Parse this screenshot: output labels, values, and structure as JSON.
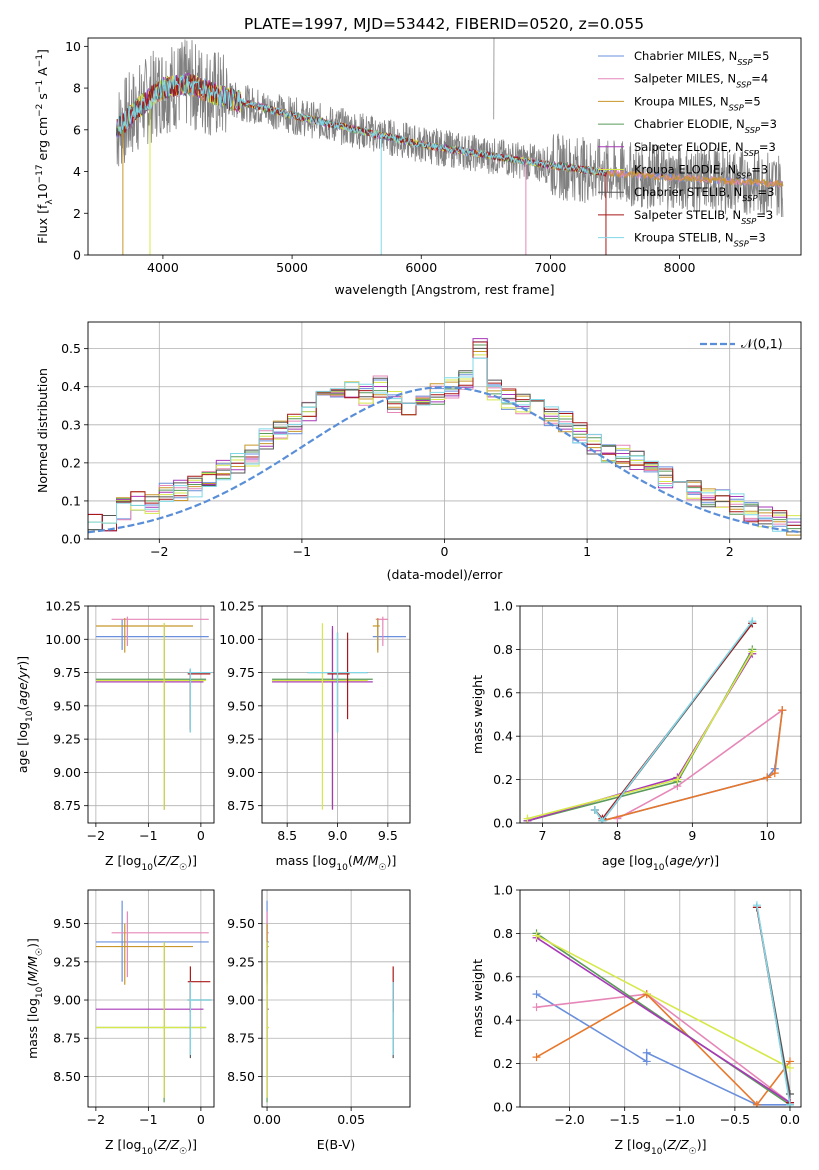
{
  "title": "PLATE=1997, MJD=53442, FIBERID=0520, z=0.055",
  "colors": {
    "Chabrier MILES": "#6a8fdc",
    "Salpeter MILES": "#e687b8",
    "Kroupa MILES": "#c8962a",
    "Chabrier ELODIE": "#5a9a5a",
    "Salpeter ELODIE": "#a838b8",
    "Kroupa ELODIE": "#d6e84a",
    "Chabrier STELIB": "#555555",
    "Salpeter STELIB": "#a81818",
    "Kroupa STELIB": "#7fd8e8",
    "data": "#808080",
    "model_orange": "#e8772a",
    "gauss": "#5a8fd8"
  },
  "chart_data": [
    {
      "id": "spectrum",
      "type": "line",
      "xlabel": "wavelength [Angstrom, rest frame]",
      "ylabel": "Flux [f_λ10^-17 erg cm^-2 s^-1 A^-1]",
      "xlim": [
        3420,
        8940
      ],
      "ylim": [
        0,
        10.4
      ],
      "xticks": [
        4000,
        5000,
        6000,
        7000,
        8000
      ],
      "yticks": [
        0,
        2,
        4,
        6,
        8,
        10
      ],
      "legend": [
        "Chabrier MILES, N_SSP=5",
        "Salpeter MILES, N_SSP=4",
        "Kroupa MILES, N_SSP=5",
        "Chabrier ELODIE, N_SSP=3",
        "Salpeter ELODIE, N_SSP=3",
        "Kroupa ELODIE, N_SSP=3",
        "Chabrier STELIB, N_SSP=3",
        "Salpeter STELIB, N_SSP=3",
        "Kroupa STELIB, N_SSP=3"
      ],
      "legend_position": "upper right",
      "model_trend": {
        "x": [
          3640,
          3800,
          4000,
          4200,
          4500,
          5000,
          5500,
          6000,
          6500,
          7000,
          7500,
          8000,
          8500,
          8800
        ],
        "y": [
          6.0,
          7.0,
          8.0,
          8.2,
          7.5,
          6.7,
          6.0,
          5.3,
          4.8,
          4.3,
          3.9,
          3.7,
          3.5,
          3.4
        ]
      }
    },
    {
      "id": "residuals",
      "type": "histogram",
      "xlabel": "(data-model)/error",
      "ylabel": "Normed distribution",
      "xlim": [
        -2.5,
        2.5
      ],
      "ylim": [
        0,
        0.57
      ],
      "xticks": [
        -2,
        -1,
        0,
        1,
        2
      ],
      "yticks": [
        0.0,
        0.1,
        0.2,
        0.3,
        0.4,
        0.5
      ],
      "grid": true,
      "legend": "𝒩(0,1)",
      "legend_position": "upper right",
      "bin_width": 0.1,
      "base_hist": [
        0.04,
        0.04,
        0.04,
        0.04,
        0.05,
        0.08,
        0.1,
        0.09,
        0.12,
        0.13,
        0.14,
        0.16,
        0.18,
        0.2,
        0.22,
        0.26,
        0.28,
        0.3,
        0.33,
        0.36,
        0.38,
        0.39,
        0.38,
        0.4,
        0.36,
        0.34,
        0.36,
        0.38,
        0.4,
        0.42,
        0.5,
        0.39,
        0.37,
        0.35,
        0.36,
        0.32,
        0.31,
        0.28,
        0.25,
        0.23,
        0.22,
        0.21,
        0.18,
        0.16,
        0.15,
        0.13,
        0.11,
        0.1,
        0.09,
        0.07,
        0.06,
        0.05,
        0.04,
        0.04,
        0.04,
        0.03
      ]
    },
    {
      "id": "age_vs_Z",
      "type": "scatter",
      "xlabel": "Z [log10(Z/Z☉)]",
      "ylabel": "age  [log10(age/yr)]",
      "xlim": [
        -2.15,
        0.25
      ],
      "ylim": [
        8.62,
        10.25
      ],
      "xticks": [
        -2,
        -1,
        0
      ],
      "yticks": [
        8.75,
        9.0,
        9.25,
        9.5,
        9.75,
        10.0,
        10.25
      ],
      "grid": true
    },
    {
      "id": "age_vs_mass",
      "type": "scatter",
      "xlabel": "mass [log10(M/M☉)]",
      "ylabel": "",
      "xlim": [
        8.25,
        9.72
      ],
      "ylim": [
        8.62,
        10.25
      ],
      "xticks": [
        8.5,
        9.0,
        9.5
      ],
      "yticks": [
        8.75,
        9.0,
        9.25,
        9.5,
        9.75,
        10.0,
        10.25
      ],
      "grid": true
    },
    {
      "id": "weight_vs_age",
      "type": "line",
      "xlabel": "age  [log10(age/yr)]",
      "ylabel": "mass weight",
      "xlim": [
        6.7,
        10.45
      ],
      "ylim": [
        0,
        1.0
      ],
      "xticks": [
        7,
        8,
        9,
        10
      ],
      "yticks": [
        0.0,
        0.2,
        0.4,
        0.6,
        0.8,
        1.0
      ],
      "grid": true,
      "series": [
        {
          "name": "Chabrier MILES",
          "x": [
            7.8,
            10.0,
            10.1,
            10.2
          ],
          "y": [
            0.01,
            0.21,
            0.25,
            0.52
          ]
        },
        {
          "name": "Salpeter MILES",
          "x": [
            8.0,
            8.8,
            10.2
          ],
          "y": [
            0.02,
            0.17,
            0.52
          ]
        },
        {
          "name": "Kroupa MILES",
          "x": [
            7.8,
            10.0,
            10.1,
            10.2
          ],
          "y": [
            0.01,
            0.21,
            0.23,
            0.52
          ]
        },
        {
          "name": "Chabrier ELODIE",
          "x": [
            6.8,
            8.8,
            9.8
          ],
          "y": [
            0.01,
            0.19,
            0.8
          ]
        },
        {
          "name": "Salpeter ELODIE",
          "x": [
            6.8,
            8.8,
            9.8
          ],
          "y": [
            0.01,
            0.21,
            0.78
          ]
        },
        {
          "name": "Kroupa ELODIE",
          "x": [
            6.8,
            8.8,
            9.8
          ],
          "y": [
            0.02,
            0.2,
            0.79
          ]
        },
        {
          "name": "Chabrier STELIB",
          "x": [
            7.7,
            7.8,
            9.8
          ],
          "y": [
            0.06,
            0.01,
            0.92
          ]
        },
        {
          "name": "Salpeter STELIB",
          "x": [
            7.7,
            7.8,
            9.8
          ],
          "y": [
            0.06,
            0.02,
            0.92
          ]
        },
        {
          "name": "Kroupa STELIB",
          "x": [
            7.7,
            7.8,
            9.8
          ],
          "y": [
            0.06,
            0.01,
            0.93
          ]
        }
      ]
    },
    {
      "id": "mass_vs_Z",
      "type": "scatter",
      "xlabel": "Z [log10(Z/Z☉)]",
      "ylabel": "mass [log10(M/M☉)]",
      "xlim": [
        -2.15,
        0.25
      ],
      "ylim": [
        8.3,
        9.72
      ],
      "xticks": [
        -2,
        -1,
        0
      ],
      "yticks": [
        8.5,
        8.75,
        9.0,
        9.25,
        9.5
      ],
      "grid": true
    },
    {
      "id": "mass_vs_ebv",
      "type": "scatter",
      "xlabel": "E(B-V)",
      "ylabel": "",
      "xlim": [
        -0.003,
        0.085
      ],
      "ylim": [
        8.3,
        9.72
      ],
      "xticks": [
        0.0,
        0.05
      ],
      "yticks": [
        8.5,
        8.75,
        9.0,
        9.25,
        9.5
      ],
      "grid": true
    },
    {
      "id": "weight_vs_Z",
      "type": "line",
      "xlabel": "Z [log10(Z/Z☉)]",
      "ylabel": "mass weight",
      "xlim": [
        -2.45,
        0.1
      ],
      "ylim": [
        0,
        1.0
      ],
      "xticks": [
        -2.0,
        -1.5,
        -1.0,
        -0.5,
        0.0
      ],
      "yticks": [
        0.0,
        0.2,
        0.4,
        0.6,
        0.8,
        1.0
      ],
      "grid": true,
      "series": [
        {
          "name": "Chabrier MILES",
          "x": [
            -2.3,
            -1.3,
            -1.3,
            -0.3,
            0.0
          ],
          "y": [
            0.52,
            0.21,
            0.25,
            0.01,
            0.01
          ]
        },
        {
          "name": "Salpeter MILES",
          "x": [
            -2.3,
            -1.3,
            0.0
          ],
          "y": [
            0.46,
            0.52,
            0.02
          ]
        },
        {
          "name": "Kroupa MILES",
          "x": [
            -2.3,
            -1.3,
            -0.3,
            0.0
          ],
          "y": [
            0.23,
            0.52,
            0.01,
            0.21
          ]
        },
        {
          "name": "Chabrier ELODIE",
          "x": [
            -2.3,
            0.0
          ],
          "y": [
            0.8,
            0.01
          ]
        },
        {
          "name": "Salpeter ELODIE",
          "x": [
            -2.3,
            0.0
          ],
          "y": [
            0.78,
            0.02
          ]
        },
        {
          "name": "Kroupa ELODIE",
          "x": [
            -2.3,
            0.0
          ],
          "y": [
            0.79,
            0.18
          ]
        },
        {
          "name": "Chabrier STELIB",
          "x": [
            -0.3,
            0.0
          ],
          "y": [
            0.92,
            0.06
          ]
        },
        {
          "name": "Salpeter STELIB",
          "x": [
            -0.3,
            0.0
          ],
          "y": [
            0.92,
            0.02
          ]
        },
        {
          "name": "Kroupa STELIB",
          "x": [
            -0.3,
            0.0
          ],
          "y": [
            0.93,
            0.01
          ]
        }
      ]
    }
  ],
  "error_crosses": {
    "age_vs_Z": [
      {
        "c": "Chabrier MILES",
        "x": -1.5,
        "y": 10.02,
        "xl": -2.0,
        "xr": 0.15,
        "yl": 9.92,
        "yh": 10.15
      },
      {
        "c": "Salpeter MILES",
        "x": -1.4,
        "y": 10.15,
        "xl": -1.7,
        "xr": 0.15,
        "yl": 9.95,
        "yh": 10.17
      },
      {
        "c": "Kroupa MILES",
        "x": -1.45,
        "y": 10.1,
        "xl": -2.0,
        "xr": -0.15,
        "yl": 9.9,
        "yh": 10.16
      },
      {
        "c": "Chabrier ELODIE",
        "x": -0.7,
        "y": 9.7,
        "xl": -2.0,
        "xr": 0.1,
        "yl": 8.72,
        "yh": 10.12
      },
      {
        "c": "Salpeter ELODIE",
        "x": -0.7,
        "y": 9.68,
        "xl": -2.0,
        "xr": 0.05,
        "yl": 8.72,
        "yh": 10.1
      },
      {
        "c": "Kroupa ELODIE",
        "x": -0.7,
        "y": 9.69,
        "xl": -2.0,
        "xr": 0.1,
        "yl": 8.72,
        "yh": 10.12
      },
      {
        "c": "Chabrier STELIB",
        "x": -0.2,
        "y": 9.75,
        "xl": -0.25,
        "xr": 0.2,
        "yl": 9.3,
        "yh": 9.78
      },
      {
        "c": "Salpeter STELIB",
        "x": -0.2,
        "y": 9.74,
        "xl": -0.25,
        "xr": 0.18,
        "yl": 9.32,
        "yh": 9.77
      },
      {
        "c": "Kroupa STELIB",
        "x": -0.2,
        "y": 9.75,
        "xl": -0.25,
        "xr": 0.2,
        "yl": 9.3,
        "yh": 9.78
      }
    ],
    "age_vs_mass": [
      {
        "c": "Chabrier MILES",
        "x": 9.4,
        "y": 10.02,
        "xl": 9.35,
        "xr": 9.68,
        "yl": 9.92,
        "yh": 10.15
      },
      {
        "c": "Salpeter MILES",
        "x": 9.45,
        "y": 10.15,
        "xl": 9.38,
        "xr": 9.5,
        "yl": 9.95,
        "yh": 10.17
      },
      {
        "c": "Kroupa MILES",
        "x": 9.4,
        "y": 10.1,
        "xl": 9.35,
        "xr": 9.42,
        "yl": 9.9,
        "yh": 10.16
      },
      {
        "c": "Chabrier ELODIE",
        "x": 8.95,
        "y": 9.7,
        "xl": 8.35,
        "xr": 9.35,
        "yl": 8.72,
        "yh": 10.08
      },
      {
        "c": "Salpeter ELODIE",
        "x": 8.95,
        "y": 9.68,
        "xl": 8.35,
        "xr": 9.35,
        "yl": 8.72,
        "yh": 10.1
      },
      {
        "c": "Kroupa ELODIE",
        "x": 8.85,
        "y": 9.69,
        "xl": 8.35,
        "xr": 9.3,
        "yl": 8.72,
        "yh": 10.12
      },
      {
        "c": "Chabrier STELIB",
        "x": 9.0,
        "y": 9.75,
        "xl": 8.7,
        "xr": 9.3,
        "yl": 9.3,
        "yh": 10.05
      },
      {
        "c": "Salpeter STELIB",
        "x": 9.1,
        "y": 9.74,
        "xl": 8.9,
        "xr": 9.12,
        "yl": 9.4,
        "yh": 10.05
      },
      {
        "c": "Kroupa STELIB",
        "x": 9.0,
        "y": 9.75,
        "xl": 8.7,
        "xr": 9.3,
        "yl": 9.3,
        "yh": 10.05
      }
    ],
    "mass_vs_Z": [
      {
        "c": "Chabrier MILES",
        "x": -1.5,
        "y": 9.38,
        "xl": -2.0,
        "xr": 0.15,
        "yl": 9.12,
        "yh": 9.65
      },
      {
        "c": "Salpeter MILES",
        "x": -1.4,
        "y": 9.44,
        "xl": -1.7,
        "xr": 0.15,
        "yl": 9.15,
        "yh": 9.58
      },
      {
        "c": "Kroupa MILES",
        "x": -1.45,
        "y": 9.35,
        "xl": -2.0,
        "xr": -0.15,
        "yl": 9.1,
        "yh": 9.5
      },
      {
        "c": "Chabrier ELODIE",
        "x": -0.7,
        "y": 8.82,
        "xl": -2.0,
        "xr": 0.1,
        "yl": 8.33,
        "yh": 9.38
      },
      {
        "c": "Salpeter ELODIE",
        "x": -0.7,
        "y": 8.94,
        "xl": -2.0,
        "xr": 0.05,
        "yl": 8.36,
        "yh": 9.38
      },
      {
        "c": "Kroupa ELODIE",
        "x": -0.7,
        "y": 8.82,
        "xl": -2.0,
        "xr": 0.1,
        "yl": 8.36,
        "yh": 9.38
      },
      {
        "c": "Chabrier STELIB",
        "x": -0.2,
        "y": 9.0,
        "xl": -0.25,
        "xr": 0.2,
        "yl": 8.62,
        "yh": 9.12
      },
      {
        "c": "Salpeter STELIB",
        "x": -0.2,
        "y": 9.12,
        "xl": -0.25,
        "xr": 0.18,
        "yl": 8.92,
        "yh": 9.22
      },
      {
        "c": "Kroupa STELIB",
        "x": -0.2,
        "y": 9.0,
        "xl": -0.25,
        "xr": 0.2,
        "yl": 8.64,
        "yh": 9.12
      }
    ],
    "mass_vs_ebv": [
      {
        "c": "Chabrier MILES",
        "x": 0.0,
        "y": 9.38,
        "xl": 0.0,
        "xr": 0.001,
        "yl": 9.12,
        "yh": 9.65
      },
      {
        "c": "Salpeter MILES",
        "x": 0.0,
        "y": 9.44,
        "xl": 0.0,
        "xr": 0.001,
        "yl": 9.15,
        "yh": 9.58
      },
      {
        "c": "Kroupa MILES",
        "x": 0.0,
        "y": 9.35,
        "xl": 0.0,
        "xr": 0.001,
        "yl": 9.1,
        "yh": 9.5
      },
      {
        "c": "Chabrier ELODIE",
        "x": 0.0,
        "y": 8.82,
        "xl": 0.0,
        "xr": 0.001,
        "yl": 8.33,
        "yh": 9.38
      },
      {
        "c": "Salpeter ELODIE",
        "x": 0.0,
        "y": 8.94,
        "xl": 0.0,
        "xr": 0.001,
        "yl": 8.36,
        "yh": 9.38
      },
      {
        "c": "Kroupa ELODIE",
        "x": 0.0,
        "y": 8.82,
        "xl": 0.0,
        "xr": 0.001,
        "yl": 8.36,
        "yh": 9.38
      },
      {
        "c": "Chabrier STELIB",
        "x": 0.075,
        "y": 9.0,
        "xl": 0.075,
        "xr": 0.0755,
        "yl": 8.62,
        "yh": 9.12
      },
      {
        "c": "Salpeter STELIB",
        "x": 0.075,
        "y": 9.12,
        "xl": 0.075,
        "xr": 0.0755,
        "yl": 8.92,
        "yh": 9.22
      },
      {
        "c": "Kroupa STELIB",
        "x": 0.075,
        "y": 9.0,
        "xl": 0.075,
        "xr": 0.0755,
        "yl": 8.64,
        "yh": 9.12
      }
    ]
  }
}
